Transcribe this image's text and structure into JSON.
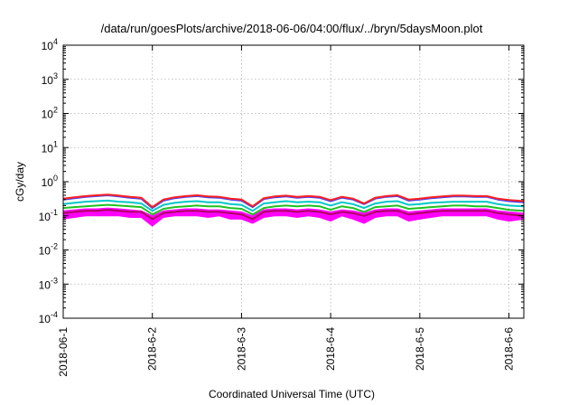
{
  "chart_data": {
    "type": "line",
    "title": "/data/run/goesPlots/archive/2018-06-06/04:00/flux/../bryn/5daysMoon.plot",
    "xlabel": "Coordinated Universal Time (UTC)",
    "ylabel": "cGy/day",
    "yscale": "log",
    "ylim": [
      0.0001,
      10000
    ],
    "xlim": [
      "2018-06-01T00:00",
      "2018-06-06T04:00"
    ],
    "grid": true,
    "x_ticks": [
      "2018-06-1",
      "2018-6-2",
      "2018-6-3",
      "2018-6-4",
      "2018-6-5",
      "2018-6-6"
    ],
    "y_ticks": [
      {
        "base": "10",
        "exp": "-4",
        "value": 0.0001
      },
      {
        "base": "10",
        "exp": "-3",
        "value": 0.001
      },
      {
        "base": "10",
        "exp": "-2",
        "value": 0.01
      },
      {
        "base": "10",
        "exp": "-1",
        "value": 0.1
      },
      {
        "base": "10",
        "exp": "0",
        "value": 1
      },
      {
        "base": "10",
        "exp": "1",
        "value": 10
      },
      {
        "base": "10",
        "exp": "2",
        "value": 100
      },
      {
        "base": "10",
        "exp": "3",
        "value": 1000
      },
      {
        "base": "10",
        "exp": "4",
        "value": 10000
      }
    ],
    "series": [
      {
        "color": "#ff00ff",
        "style": "filled-band",
        "x": [
          "2018-06-01T00:00",
          "2018-06-01T03:00",
          "2018-06-01T06:00",
          "2018-06-01T09:00",
          "2018-06-01T12:00",
          "2018-06-01T15:00",
          "2018-06-01T18:00",
          "2018-06-01T21:00",
          "2018-06-02T00:00",
          "2018-06-02T03:00",
          "2018-06-02T06:00",
          "2018-06-02T09:00",
          "2018-06-02T12:00",
          "2018-06-02T15:00",
          "2018-06-02T18:00",
          "2018-06-02T21:00",
          "2018-06-03T00:00",
          "2018-06-03T03:00",
          "2018-06-03T06:00",
          "2018-06-03T09:00",
          "2018-06-03T12:00",
          "2018-06-03T15:00",
          "2018-06-03T18:00",
          "2018-06-03T21:00",
          "2018-06-04T00:00",
          "2018-06-04T03:00",
          "2018-06-04T06:00",
          "2018-06-04T09:00",
          "2018-06-04T12:00",
          "2018-06-04T15:00",
          "2018-06-04T18:00",
          "2018-06-04T21:00",
          "2018-06-05T00:00",
          "2018-06-05T03:00",
          "2018-06-05T06:00",
          "2018-06-05T09:00",
          "2018-06-05T12:00",
          "2018-06-05T15:00",
          "2018-06-05T18:00",
          "2018-06-05T21:00",
          "2018-06-06T00:00",
          "2018-06-06T04:00"
        ],
        "low": [
          0.08,
          0.09,
          0.1,
          0.1,
          0.1,
          0.1,
          0.09,
          0.09,
          0.05,
          0.09,
          0.1,
          0.1,
          0.1,
          0.09,
          0.1,
          0.08,
          0.08,
          0.06,
          0.09,
          0.1,
          0.1,
          0.09,
          0.1,
          0.09,
          0.07,
          0.1,
          0.08,
          0.06,
          0.09,
          0.1,
          0.1,
          0.07,
          0.08,
          0.09,
          0.1,
          0.1,
          0.1,
          0.1,
          0.1,
          0.08,
          0.07,
          0.08
        ],
        "high": [
          0.14,
          0.15,
          0.16,
          0.16,
          0.17,
          0.16,
          0.15,
          0.14,
          0.1,
          0.14,
          0.15,
          0.16,
          0.16,
          0.15,
          0.15,
          0.14,
          0.13,
          0.1,
          0.15,
          0.16,
          0.16,
          0.15,
          0.16,
          0.15,
          0.13,
          0.15,
          0.14,
          0.12,
          0.15,
          0.16,
          0.16,
          0.13,
          0.14,
          0.15,
          0.16,
          0.16,
          0.16,
          0.16,
          0.16,
          0.14,
          0.13,
          0.12
        ]
      },
      {
        "color": "#4040ff",
        "x_ref": 0,
        "values": [
          0.3,
          0.33,
          0.36,
          0.38,
          0.4,
          0.37,
          0.34,
          0.32,
          0.17,
          0.28,
          0.33,
          0.36,
          0.38,
          0.35,
          0.34,
          0.3,
          0.28,
          0.18,
          0.31,
          0.35,
          0.37,
          0.34,
          0.36,
          0.34,
          0.27,
          0.34,
          0.3,
          0.22,
          0.32,
          0.36,
          0.38,
          0.28,
          0.3,
          0.33,
          0.35,
          0.37,
          0.37,
          0.36,
          0.36,
          0.3,
          0.27,
          0.25
        ]
      },
      {
        "color": "#ff2020",
        "x_ref": 0,
        "values": [
          0.32,
          0.35,
          0.38,
          0.4,
          0.42,
          0.39,
          0.36,
          0.34,
          0.18,
          0.3,
          0.35,
          0.38,
          0.4,
          0.37,
          0.36,
          0.32,
          0.3,
          0.19,
          0.33,
          0.37,
          0.39,
          0.36,
          0.38,
          0.36,
          0.29,
          0.36,
          0.32,
          0.23,
          0.34,
          0.38,
          0.4,
          0.3,
          0.32,
          0.35,
          0.37,
          0.39,
          0.39,
          0.38,
          0.38,
          0.32,
          0.29,
          0.27
        ]
      },
      {
        "color": "#00c8c8",
        "x_ref": 0,
        "values": [
          0.22,
          0.24,
          0.26,
          0.27,
          0.28,
          0.26,
          0.25,
          0.23,
          0.14,
          0.21,
          0.24,
          0.26,
          0.27,
          0.25,
          0.25,
          0.22,
          0.21,
          0.14,
          0.23,
          0.25,
          0.27,
          0.25,
          0.26,
          0.25,
          0.2,
          0.25,
          0.22,
          0.17,
          0.23,
          0.26,
          0.27,
          0.21,
          0.22,
          0.24,
          0.25,
          0.26,
          0.26,
          0.26,
          0.26,
          0.22,
          0.2,
          0.19
        ]
      },
      {
        "color": "#20c020",
        "x_ref": 0,
        "values": [
          0.17,
          0.18,
          0.19,
          0.2,
          0.21,
          0.2,
          0.19,
          0.18,
          0.11,
          0.16,
          0.18,
          0.19,
          0.2,
          0.19,
          0.19,
          0.17,
          0.16,
          0.11,
          0.17,
          0.19,
          0.2,
          0.19,
          0.2,
          0.19,
          0.15,
          0.19,
          0.17,
          0.13,
          0.18,
          0.19,
          0.2,
          0.16,
          0.17,
          0.18,
          0.19,
          0.2,
          0.2,
          0.19,
          0.19,
          0.17,
          0.15,
          0.14
        ]
      },
      {
        "color": "#b00060",
        "x_ref": 0,
        "values": [
          0.12,
          0.13,
          0.14,
          0.14,
          0.15,
          0.14,
          0.13,
          0.13,
          0.08,
          0.12,
          0.13,
          0.14,
          0.14,
          0.13,
          0.13,
          0.12,
          0.11,
          0.08,
          0.13,
          0.14,
          0.14,
          0.13,
          0.14,
          0.13,
          0.11,
          0.13,
          0.12,
          0.1,
          0.13,
          0.14,
          0.14,
          0.11,
          0.12,
          0.13,
          0.14,
          0.14,
          0.14,
          0.14,
          0.14,
          0.12,
          0.11,
          0.1
        ]
      }
    ]
  }
}
